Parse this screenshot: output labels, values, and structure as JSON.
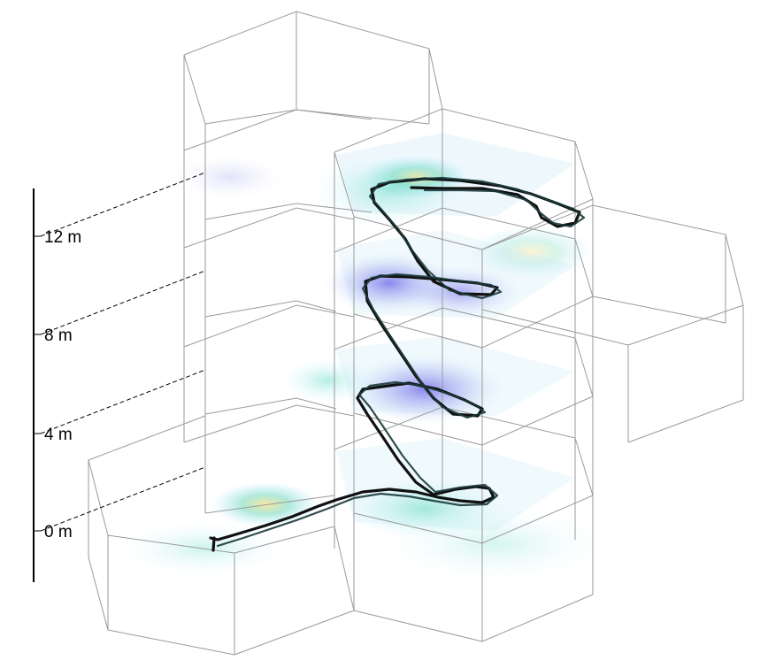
{
  "height_axis": {
    "tick_labels": [
      "0 m",
      "4 m",
      "8 m",
      "12 m"
    ],
    "values_m": [
      0,
      4,
      8,
      12
    ]
  },
  "colors": {
    "trajectory": "#111111",
    "cell_edge": "#9a9a9a",
    "heat_high": "#f7e08a",
    "heat_mid": "#5fd1c2",
    "heat_low": "#6f6fe6"
  }
}
